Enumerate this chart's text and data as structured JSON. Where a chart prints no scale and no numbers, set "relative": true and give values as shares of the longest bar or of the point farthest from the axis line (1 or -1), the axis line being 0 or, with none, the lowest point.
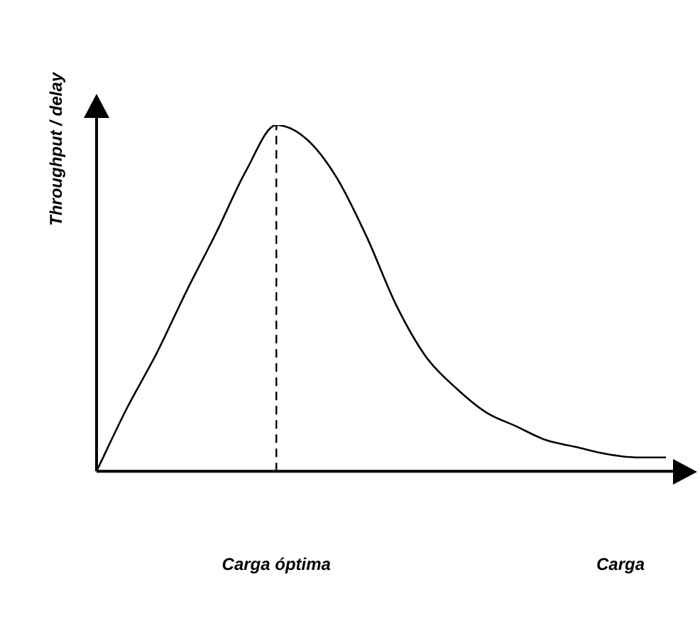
{
  "chart_data": {
    "type": "line",
    "relative": true,
    "xlabel": "Carga",
    "ylabel": "Throughput / delay",
    "categories": [
      null,
      null,
      null,
      null,
      null,
      null,
      null,
      null,
      null,
      null,
      null,
      null,
      null,
      null,
      null,
      null,
      null,
      null,
      null,
      null
    ],
    "series": [
      {
        "color": "#000000",
        "values": [
          0,
          0.18,
          0.34,
          0.52,
          0.69,
          0.87,
          1,
          0.96,
          0.85,
          0.68,
          0.48,
          0.33,
          0.24,
          0.17,
          0.13,
          0.09,
          0.07,
          0.05,
          0.04,
          0.04
        ]
      }
    ],
    "annotations": [
      "Carga óptima"
    ],
    "grid": false,
    "legend": false,
    "marker": "none",
    "line_style": "solid"
  }
}
